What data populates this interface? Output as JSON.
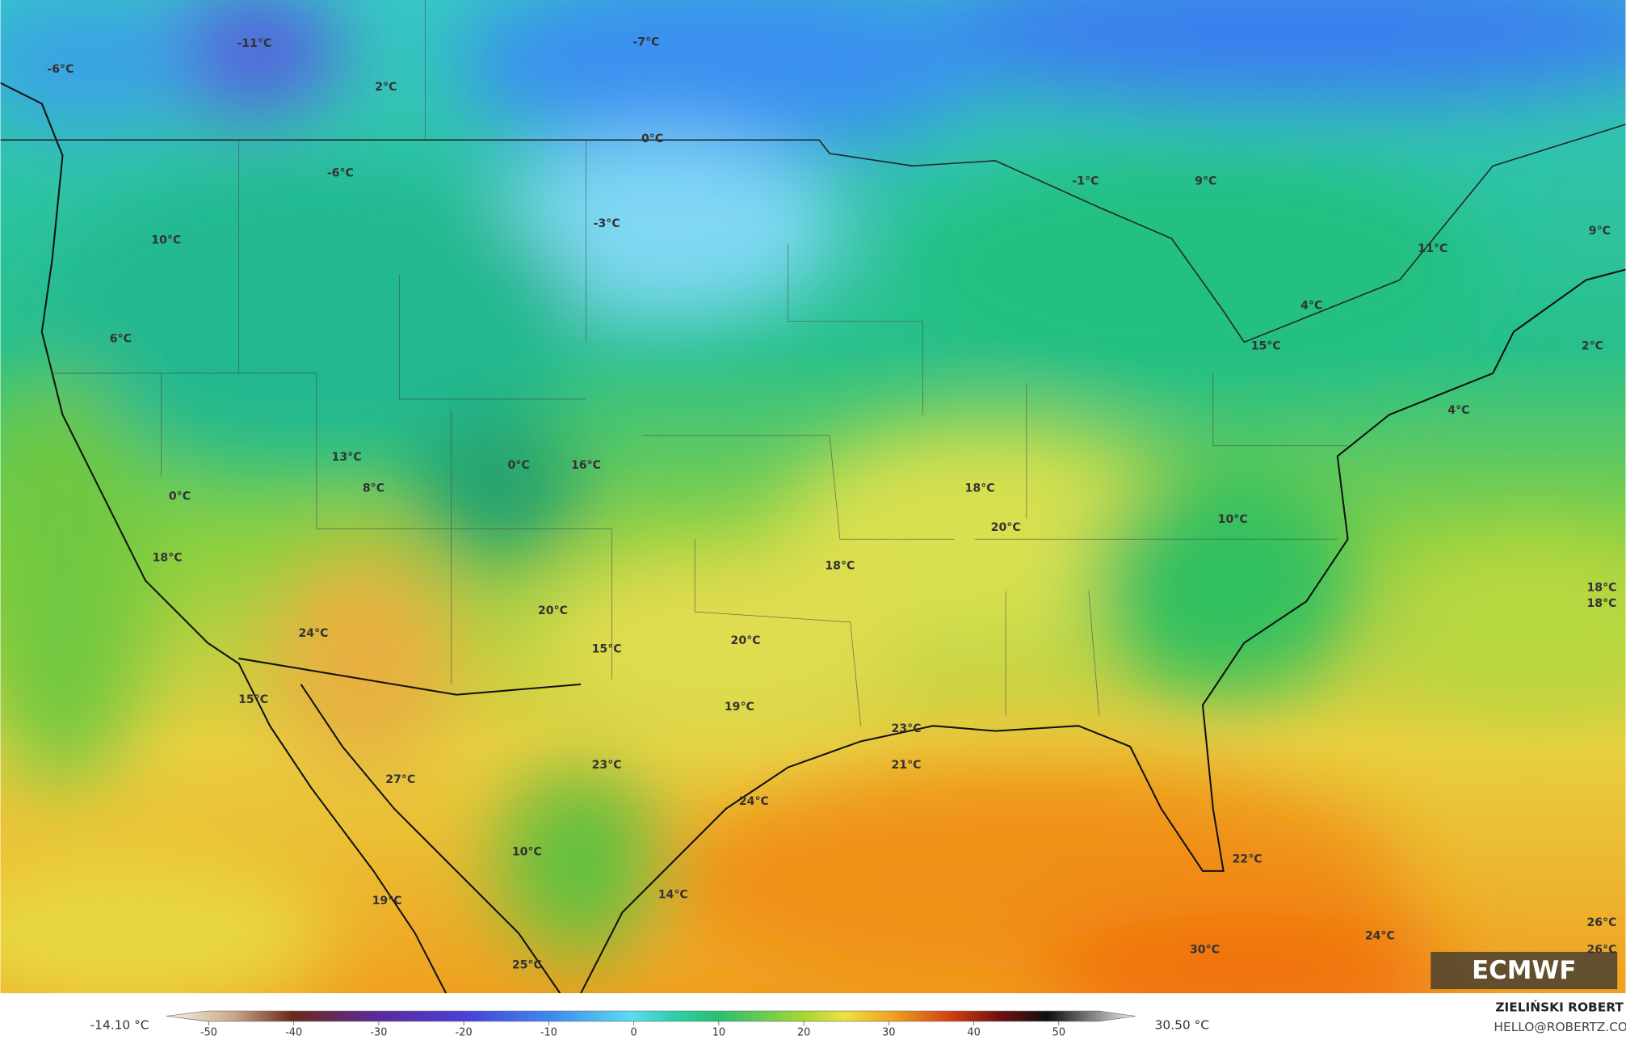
{
  "map": {
    "labels": [
      "-11°C",
      "-6°C",
      "2°C",
      "-7°C",
      "0°C",
      "-6°C",
      "-3°C",
      "-1°C",
      "9°C",
      "10°C",
      "11°C",
      "9°C",
      "4°C",
      "6°C",
      "15°C",
      "2°C",
      "4°C",
      "13°C",
      "0°C",
      "16°C",
      "8°C",
      "0°C",
      "18°C",
      "20°C",
      "10°C",
      "18°C",
      "18°C",
      "18°C",
      "18°C",
      "20°C",
      "24°C",
      "20°C",
      "15°C",
      "15°C",
      "19°C",
      "23°C",
      "21°C",
      "23°C",
      "27°C",
      "24°C",
      "10°C",
      "22°C",
      "14°C",
      "19°C",
      "26°C",
      "24°C",
      "30°C",
      "26°C",
      "25°C"
    ],
    "logo": "ECMWF"
  },
  "colorbar": {
    "min_label": "-14.10 °C",
    "max_label": "30.50 °C",
    "range": [
      -55,
      59
    ],
    "ticks": [
      -50,
      -40,
      -30,
      -20,
      -10,
      0,
      10,
      20,
      30,
      40,
      50
    ]
  },
  "credits": {
    "author": "ZIELIŃSKI ROBERT",
    "email": "HELLO@ROBERTZ.CO"
  }
}
